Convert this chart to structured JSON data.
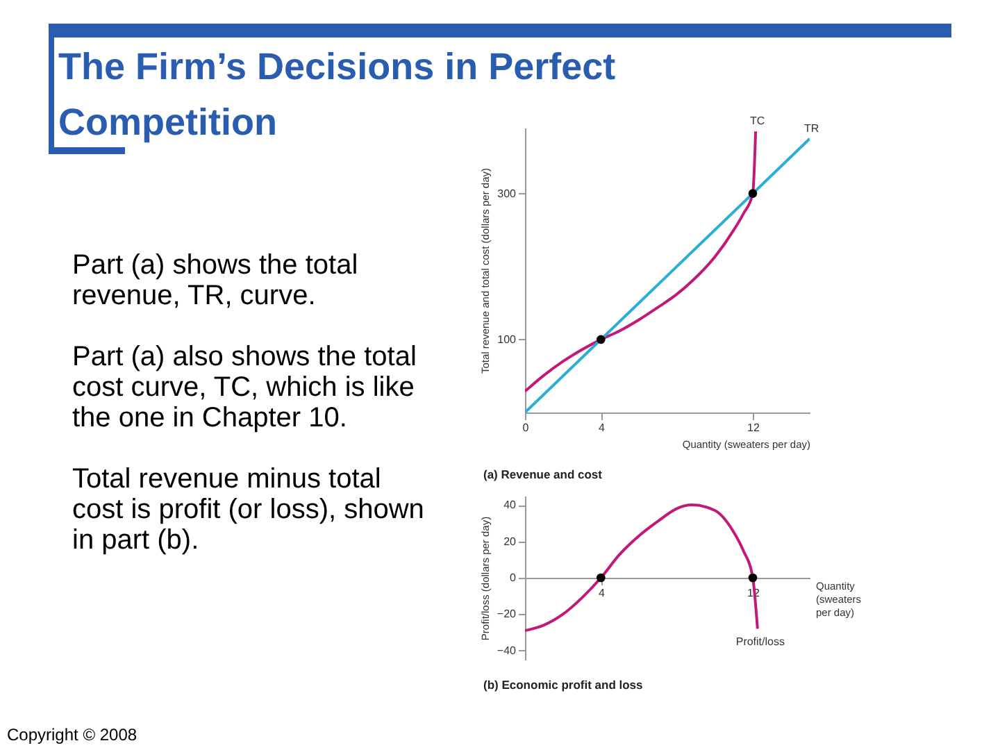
{
  "chart_data": [
    {
      "type": "other",
      "title": "The Firm’s Decisions in Perfect Competition",
      "annotations": [
        "Part (a) shows the total revenue, TR, curve.",
        "Part (a) also shows the total cost curve, TC, which is like the one in Chapter 10.",
        "Total revenue minus total cost is profit (or loss), shown in part (b).",
        "Copyright © 2008"
      ]
    },
    {
      "type": "line",
      "title": "(a) Revenue and cost",
      "xlabel": "Quantity (sweaters per day)",
      "ylabel": "Total revenue and total cost (dollars per day)",
      "xlim": [
        0,
        15
      ],
      "ylim": [
        0,
        390
      ],
      "xticks": [
        0,
        4,
        12
      ],
      "yticks": [
        100,
        300
      ],
      "grid": false,
      "series": [
        {
          "name": "TC",
          "type": "line",
          "color": "#c2187a",
          "x": [
            0,
            1,
            2,
            3,
            4,
            5,
            6,
            7,
            8,
            8.8,
            10,
            11,
            11.5,
            12,
            12.15
          ],
          "values": [
            29,
            51,
            70,
            86,
            100,
            112,
            127,
            144,
            162,
            180,
            213,
            250,
            272,
            300,
            385
          ]
        },
        {
          "name": "TR",
          "type": "line",
          "color": "#2aaed8",
          "x": [
            0,
            15
          ],
          "values": [
            0,
            375
          ]
        },
        {
          "type": "scatter",
          "color": "#000000",
          "x": [
            4,
            12
          ],
          "values": [
            100,
            300
          ]
        }
      ]
    },
    {
      "type": "line",
      "title": "(b) Economic profit and loss",
      "xlabel": "Quantity (sweaters per day)",
      "ylabel": "Profit/loss (dollars per day)",
      "xlim": [
        0,
        15
      ],
      "ylim": [
        -45,
        45
      ],
      "xticks": [
        4,
        12
      ],
      "yticks": [
        -40,
        -20,
        0,
        20,
        40
      ],
      "grid": false,
      "series": [
        {
          "name": "Profit/loss",
          "type": "line",
          "color": "#c2187a",
          "x": [
            0,
            1,
            2,
            3,
            4,
            5,
            6,
            7,
            8,
            8.8,
            10,
            11,
            11.5,
            12,
            12.25
          ],
          "values": [
            -29,
            -26,
            -20,
            -11,
            0,
            13,
            23,
            31,
            38,
            40,
            37,
            25,
            15,
            0,
            -28
          ]
        },
        {
          "type": "scatter",
          "color": "#000000",
          "x": [
            4,
            12
          ],
          "values": [
            0,
            0
          ]
        }
      ]
    }
  ]
}
